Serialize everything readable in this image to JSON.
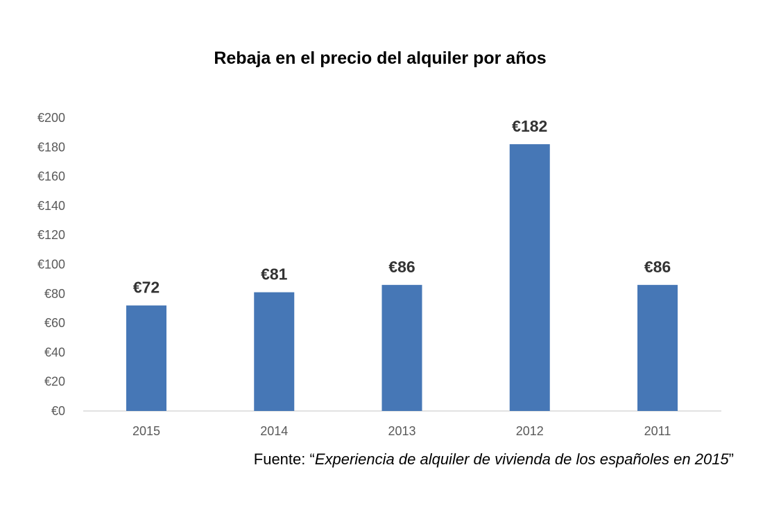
{
  "chart_data": {
    "type": "bar",
    "title": "Rebaja en el precio del alquiler por años",
    "categories": [
      "2015",
      "2014",
      "2013",
      "2012",
      "2011"
    ],
    "values": [
      72,
      81,
      86,
      182,
      86
    ],
    "data_labels": [
      "€72",
      "€81",
      "€86",
      "€182",
      "€86"
    ],
    "yticks": [
      "€0",
      "€20",
      "€40",
      "€60",
      "€80",
      "€100",
      "€120",
      "€140",
      "€160",
      "€180",
      "€200"
    ],
    "ylim": [
      0,
      200
    ],
    "xlabel": "",
    "ylabel": "",
    "grid": false,
    "bar_color": "#4677b6"
  },
  "source": {
    "prefix": "Fuente: “",
    "title": "Experiencia de alquiler de vivienda de los españoles en 2015",
    "suffix": "”"
  }
}
